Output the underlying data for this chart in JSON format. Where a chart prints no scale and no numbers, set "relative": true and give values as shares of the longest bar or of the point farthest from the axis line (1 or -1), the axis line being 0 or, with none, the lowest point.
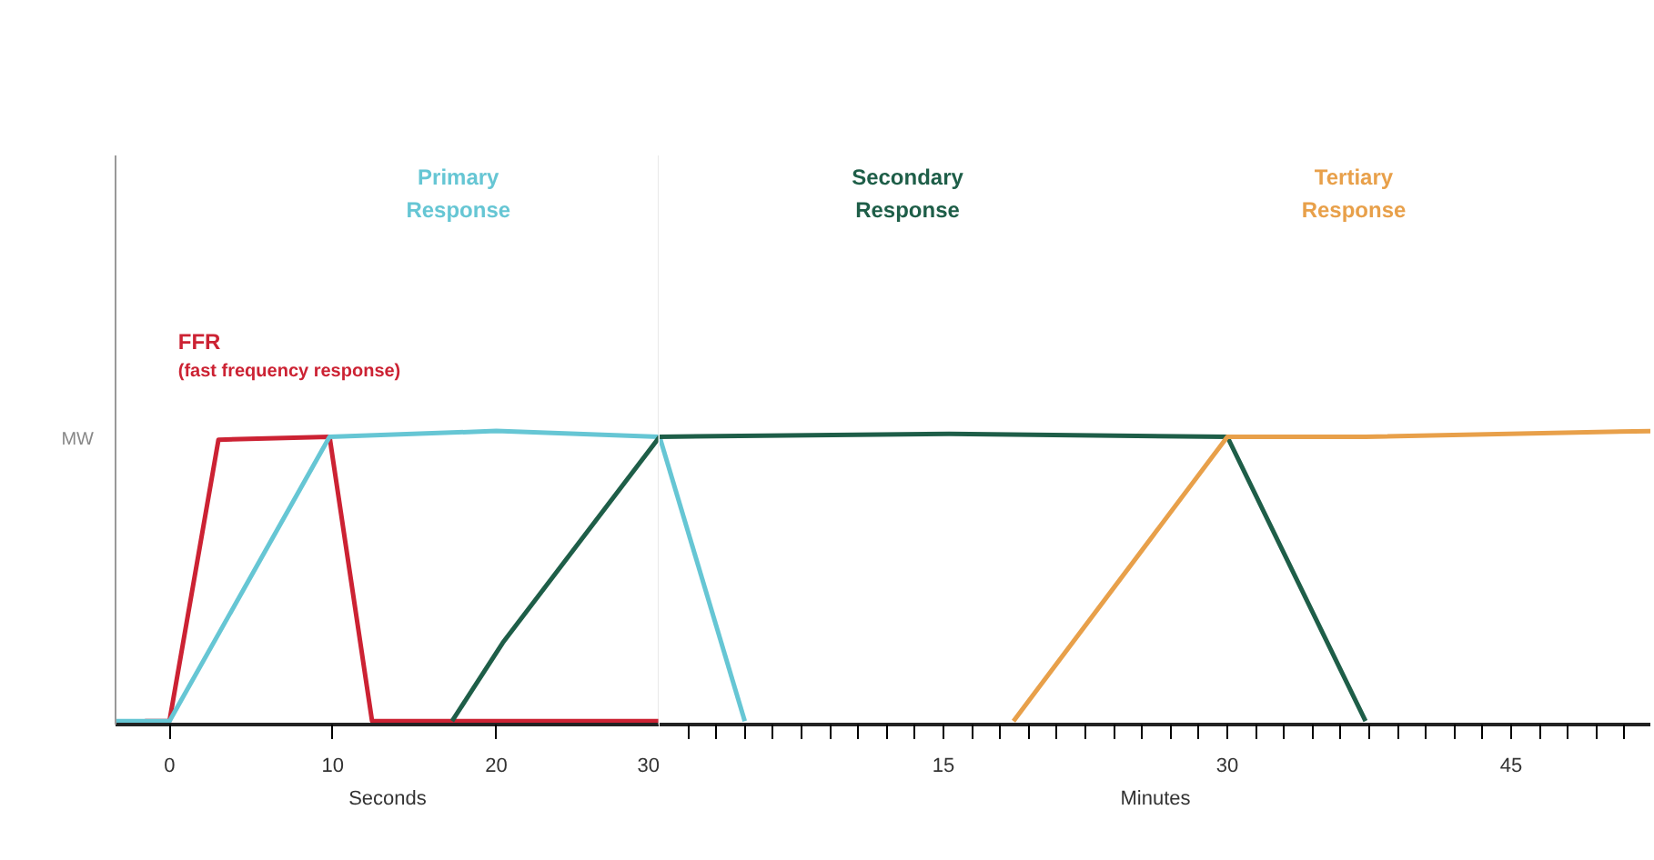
{
  "chart_data": [
    {
      "type": "line",
      "relative": true,
      "ylabel": "MW",
      "xlabel": "Seconds",
      "xlim": [
        -3.3,
        30
      ],
      "xticks": [
        0,
        10,
        20,
        30
      ],
      "grid": false,
      "tick_labels": "x",
      "ref_lines": [
        {
          "axis": "x",
          "value": 30,
          "label": null,
          "color": "#d4d4d4"
        }
      ],
      "series": [
        {
          "name": "FFR (fast frequency response)",
          "color": "#cc2233",
          "x": [
            -1.5,
            0,
            3.0,
            9.8,
            12.4,
            30
          ],
          "values": [
            0,
            0,
            0.97,
            0.98,
            0,
            0
          ]
        },
        {
          "name": "Primary Response",
          "color": "#66c6d4",
          "x": [
            -3.3,
            0,
            9.8,
            20,
            30
          ],
          "values": [
            0,
            0,
            0.98,
            1.0,
            0.98
          ]
        },
        {
          "color": "#1e5e48",
          "x": [
            17.3,
            20.4,
            30
          ],
          "values": [
            0,
            0.27,
            0.98
          ]
        }
      ]
    },
    {
      "type": "line",
      "relative": true,
      "xlabel": "Minutes",
      "xlim": [
        0,
        52.4
      ],
      "xticks": [
        {
          "value": 1.5,
          "label": null
        },
        {
          "value": 3,
          "label": null
        },
        {
          "value": 4.5,
          "label": null
        },
        {
          "value": 6,
          "label": null
        },
        {
          "value": 7.5,
          "label": null
        },
        {
          "value": 9,
          "label": null
        },
        {
          "value": 10.5,
          "label": null
        },
        {
          "value": 12,
          "label": null
        },
        {
          "value": 13.5,
          "label": null
        },
        15,
        {
          "value": 16.5,
          "label": null
        },
        {
          "value": 18,
          "label": null
        },
        {
          "value": 19.5,
          "label": null
        },
        {
          "value": 21,
          "label": null
        },
        {
          "value": 22.5,
          "label": null
        },
        {
          "value": 24,
          "label": null
        },
        {
          "value": 25.5,
          "label": null
        },
        {
          "value": 27,
          "label": null
        },
        {
          "value": 28.5,
          "label": null
        },
        30,
        {
          "value": 31.5,
          "label": null
        },
        {
          "value": 33,
          "label": null
        },
        {
          "value": 34.5,
          "label": null
        },
        {
          "value": 36,
          "label": null
        },
        {
          "value": 37.5,
          "label": null
        },
        {
          "value": 39,
          "label": null
        },
        {
          "value": 40.5,
          "label": null
        },
        {
          "value": 42,
          "label": null
        },
        {
          "value": 43.5,
          "label": null
        },
        45,
        {
          "value": 46.5,
          "label": null
        },
        {
          "value": 48,
          "label": null
        },
        {
          "value": 49.5,
          "label": null
        },
        {
          "value": 51,
          "label": null
        }
      ],
      "grid": false,
      "tick_labels": "x",
      "series": [
        {
          "color": "#66c6d4",
          "x": [
            0,
            4.5
          ],
          "values": [
            0.98,
            0
          ]
        },
        {
          "name": "Secondary Response",
          "color": "#1e5e48",
          "x": [
            0,
            15.3,
            30,
            37.3
          ],
          "values": [
            0.98,
            0.99,
            0.98,
            0
          ]
        },
        {
          "name": "Tertiary Response",
          "color": "#e8a04a",
          "x": [
            18.7,
            30,
            37.3,
            52.4
          ],
          "values": [
            0,
            0.98,
            0.98,
            1.0
          ]
        }
      ]
    }
  ]
}
